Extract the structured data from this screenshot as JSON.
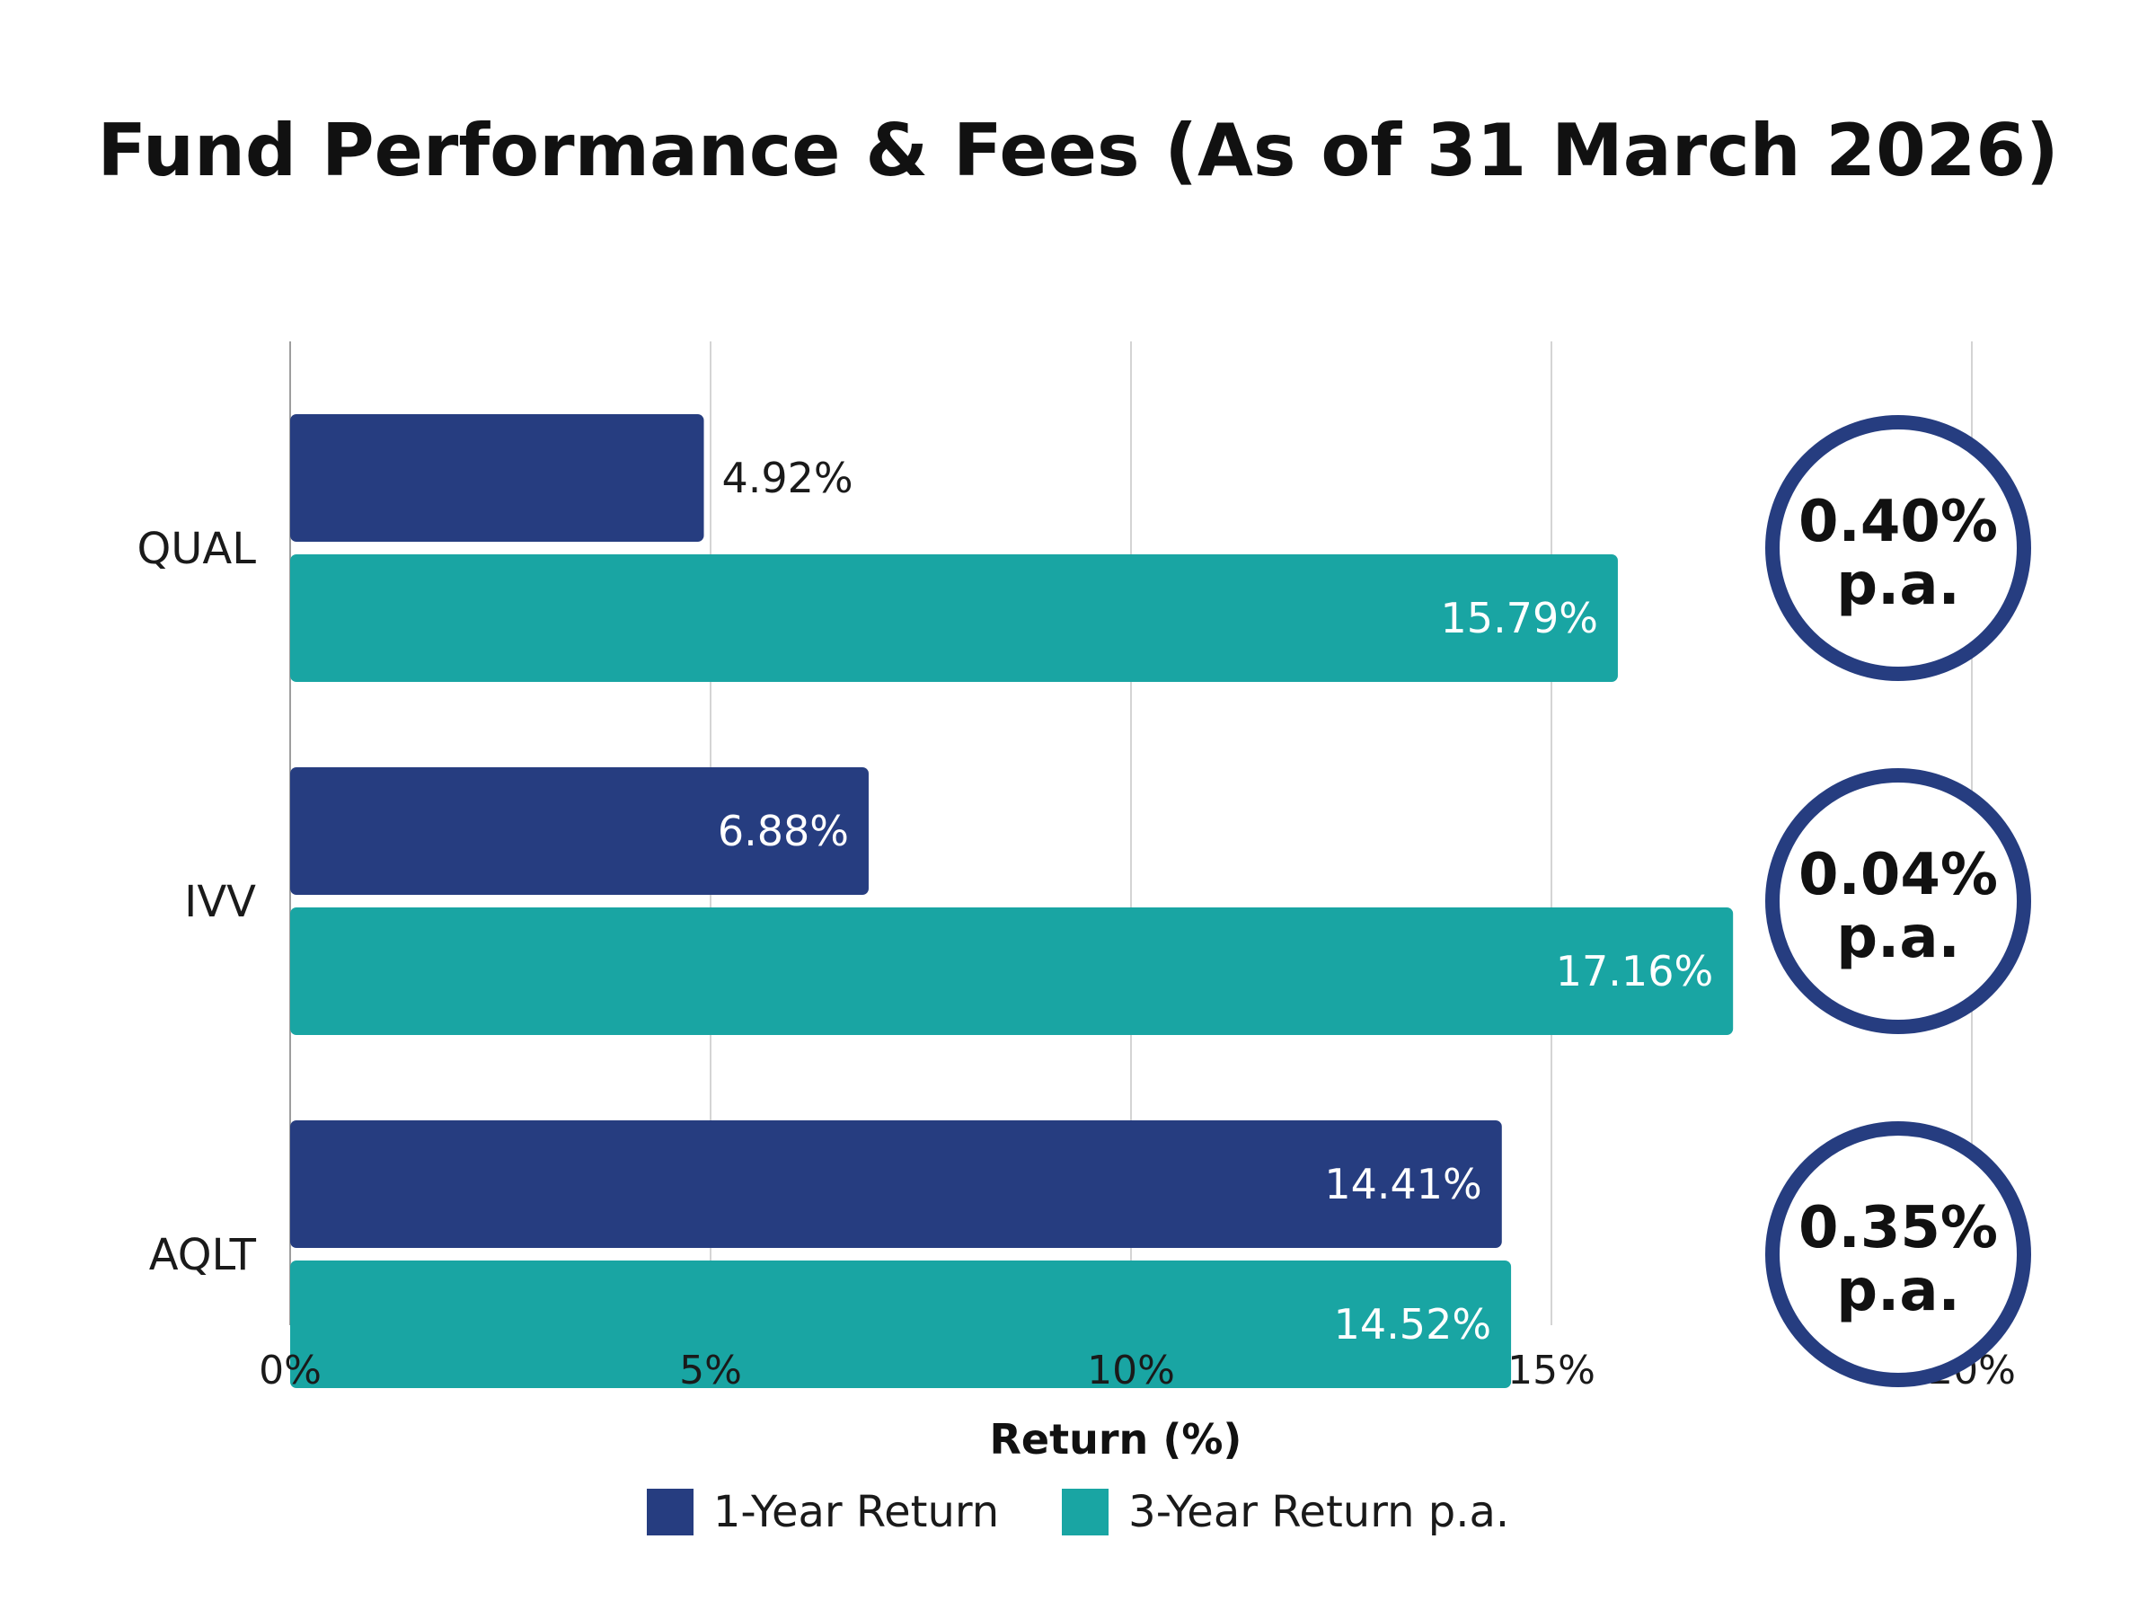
{
  "chart_data": {
    "type": "bar",
    "orientation": "horizontal",
    "title": "Fund Performance & Fees (As of 31 March 2026)",
    "xlabel": "Return (%)",
    "ylabel": "",
    "categories": [
      "QUAL",
      "IVV",
      "AQLT"
    ],
    "series": [
      {
        "name": "1-Year Return",
        "color": "#263d80",
        "values": [
          4.92,
          6.88,
          14.41
        ],
        "labels": [
          "4.92%",
          "6.88%",
          "14.41%"
        ]
      },
      {
        "name": "3-Year Return p.a.",
        "color": "#19a5a3",
        "values": [
          15.79,
          17.16,
          14.52
        ],
        "labels": [
          "15.79%",
          "17.16%",
          "14.52%"
        ]
      }
    ],
    "fees": [
      {
        "value": "0.40%",
        "unit": "p.a."
      },
      {
        "value": "0.04%",
        "unit": "p.a."
      },
      {
        "value": "0.35%",
        "unit": "p.a."
      }
    ],
    "fee_circle_color": "#263d80",
    "xlim": [
      0,
      20
    ],
    "xticks": [
      0,
      5,
      10,
      15,
      20
    ],
    "xtick_labels": [
      "0%",
      "5%",
      "10%",
      "15%",
      "20%"
    ],
    "grid": "vertical",
    "legend_position": "bottom-center"
  }
}
